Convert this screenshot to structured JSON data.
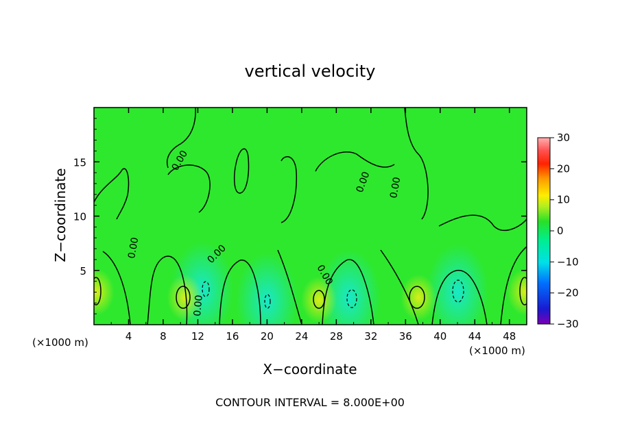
{
  "chart_data": {
    "type": "heatmap",
    "title": "vertical velocity",
    "xlabel": "X−coordinate",
    "ylabel": "Z−coordinate",
    "x_unit": "(×1000 m)",
    "x_unit_right": "(×1000 m)",
    "xlim": [
      0,
      50
    ],
    "ylim": [
      0,
      20
    ],
    "x_ticks": [
      4,
      8,
      12,
      16,
      20,
      24,
      28,
      32,
      36,
      40,
      44,
      48
    ],
    "y_ticks": [
      5,
      10,
      15
    ],
    "colorbar": {
      "range": [
        -30,
        30
      ],
      "ticks": [
        30,
        20,
        10,
        0,
        -10,
        -20,
        -30
      ],
      "tick_labels": [
        "30",
        "20",
        "10",
        "0",
        "−10",
        "−20",
        "−30"
      ]
    },
    "contour_interval_text": "CONTOUR INTERVAL = 8.000E+00",
    "contour_labels": [
      "0.00",
      "0.00",
      "0.00",
      "0.00",
      "0.00",
      "0.00",
      "0.00"
    ],
    "updrafts_core": [
      {
        "x": 10.5,
        "z": 2.5,
        "w": 8
      },
      {
        "x": 26,
        "z": 2.3,
        "w": 8
      },
      {
        "x": 37.5,
        "z": 2.5,
        "w": 8
      },
      {
        "x": 0.3,
        "z": 3.0,
        "w": 8
      },
      {
        "x": 49.8,
        "z": 3.0,
        "w": 8
      }
    ],
    "downdrafts_core": [
      {
        "x": 12.5,
        "z": 3.2,
        "w": -8
      },
      {
        "x": 20,
        "z": 2.2,
        "w": -8
      },
      {
        "x": 29.5,
        "z": 2.5,
        "w": -8
      },
      {
        "x": 42,
        "z": 3.0,
        "w": -8
      }
    ]
  }
}
